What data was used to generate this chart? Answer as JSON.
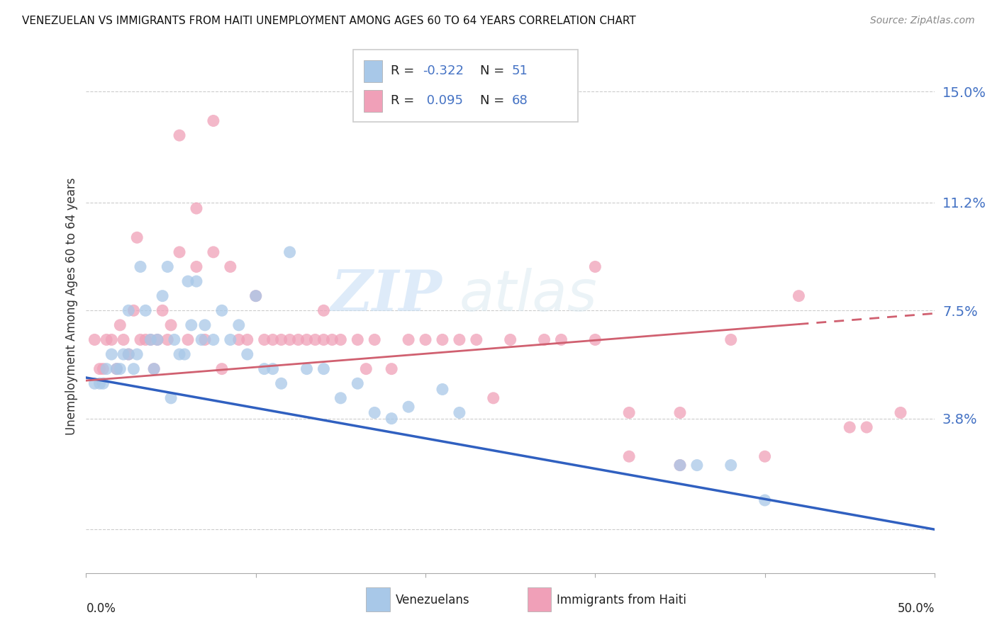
{
  "title": "VENEZUELAN VS IMMIGRANTS FROM HAITI UNEMPLOYMENT AMONG AGES 60 TO 64 YEARS CORRELATION CHART",
  "source": "Source: ZipAtlas.com",
  "ylabel": "Unemployment Among Ages 60 to 64 years",
  "yticks": [
    0.0,
    0.038,
    0.075,
    0.112,
    0.15
  ],
  "ytick_labels": [
    "",
    "3.8%",
    "7.5%",
    "11.2%",
    "15.0%"
  ],
  "xlim": [
    0.0,
    0.5
  ],
  "ylim": [
    -0.015,
    0.168
  ],
  "venezuelan_R": -0.322,
  "venezuelan_N": 51,
  "haiti_R": 0.095,
  "haiti_N": 68,
  "venezuelan_color": "#a8c8e8",
  "haiti_color": "#f0a0b8",
  "venezuelan_line_color": "#3060c0",
  "haiti_line_color": "#d06070",
  "watermark_zip": "ZIP",
  "watermark_atlas": "atlas",
  "venezuelan_x": [
    0.005,
    0.008,
    0.01,
    0.012,
    0.015,
    0.018,
    0.02,
    0.022,
    0.025,
    0.025,
    0.028,
    0.03,
    0.032,
    0.035,
    0.038,
    0.04,
    0.042,
    0.045,
    0.048,
    0.05,
    0.052,
    0.055,
    0.058,
    0.06,
    0.062,
    0.065,
    0.068,
    0.07,
    0.075,
    0.08,
    0.085,
    0.09,
    0.095,
    0.1,
    0.105,
    0.11,
    0.115,
    0.12,
    0.13,
    0.14,
    0.15,
    0.16,
    0.17,
    0.18,
    0.19,
    0.21,
    0.22,
    0.35,
    0.36,
    0.38,
    0.4
  ],
  "venezuelan_y": [
    0.05,
    0.05,
    0.05,
    0.055,
    0.06,
    0.055,
    0.055,
    0.06,
    0.06,
    0.075,
    0.055,
    0.06,
    0.09,
    0.075,
    0.065,
    0.055,
    0.065,
    0.08,
    0.09,
    0.045,
    0.065,
    0.06,
    0.06,
    0.085,
    0.07,
    0.085,
    0.065,
    0.07,
    0.065,
    0.075,
    0.065,
    0.07,
    0.06,
    0.08,
    0.055,
    0.055,
    0.05,
    0.095,
    0.055,
    0.055,
    0.045,
    0.05,
    0.04,
    0.038,
    0.042,
    0.048,
    0.04,
    0.022,
    0.022,
    0.022,
    0.01
  ],
  "haiti_x": [
    0.005,
    0.008,
    0.01,
    0.012,
    0.015,
    0.018,
    0.02,
    0.022,
    0.025,
    0.028,
    0.03,
    0.032,
    0.035,
    0.038,
    0.04,
    0.042,
    0.045,
    0.048,
    0.05,
    0.055,
    0.06,
    0.065,
    0.07,
    0.075,
    0.08,
    0.085,
    0.09,
    0.095,
    0.1,
    0.105,
    0.11,
    0.115,
    0.12,
    0.125,
    0.13,
    0.135,
    0.14,
    0.145,
    0.15,
    0.16,
    0.165,
    0.17,
    0.18,
    0.19,
    0.2,
    0.21,
    0.22,
    0.23,
    0.24,
    0.25,
    0.27,
    0.28,
    0.3,
    0.32,
    0.35,
    0.38,
    0.42,
    0.45,
    0.46,
    0.48,
    0.055,
    0.065,
    0.075,
    0.14,
    0.32,
    0.35,
    0.4,
    0.3
  ],
  "haiti_y": [
    0.065,
    0.055,
    0.055,
    0.065,
    0.065,
    0.055,
    0.07,
    0.065,
    0.06,
    0.075,
    0.1,
    0.065,
    0.065,
    0.065,
    0.055,
    0.065,
    0.075,
    0.065,
    0.07,
    0.095,
    0.065,
    0.09,
    0.065,
    0.14,
    0.055,
    0.09,
    0.065,
    0.065,
    0.08,
    0.065,
    0.065,
    0.065,
    0.065,
    0.065,
    0.065,
    0.065,
    0.065,
    0.065,
    0.065,
    0.065,
    0.055,
    0.065,
    0.055,
    0.065,
    0.065,
    0.065,
    0.065,
    0.065,
    0.045,
    0.065,
    0.065,
    0.065,
    0.065,
    0.04,
    0.04,
    0.065,
    0.08,
    0.035,
    0.035,
    0.04,
    0.135,
    0.11,
    0.095,
    0.075,
    0.025,
    0.022,
    0.025,
    0.09
  ]
}
